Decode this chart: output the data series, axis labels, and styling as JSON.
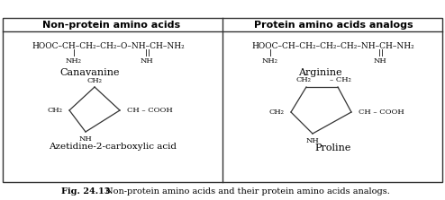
{
  "title_bold": "Fig. 24.13",
  "title_rest": " Non-protein amino acids and their protein amino acids analogs.",
  "col1_header": "Non-protein amino acids",
  "col2_header": "Protein amino acids analogs",
  "bg_color": "#ffffff",
  "border_color": "#333333",
  "text_color": "#000000",
  "fig_width": 4.94,
  "fig_height": 2.23,
  "dpi": 100,
  "canavanine_name": "Canavanine",
  "arginine_name": "Arginine",
  "azetidine_name": "Azetidine-2-carboxylic acid",
  "proline_name": "Proline"
}
